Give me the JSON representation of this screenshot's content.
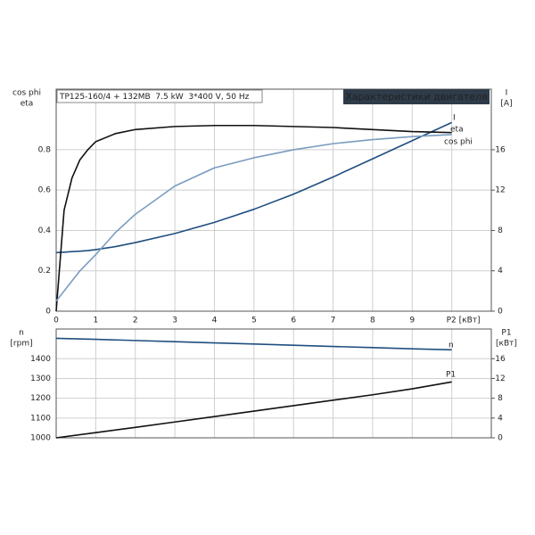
{
  "chart_data": [
    {
      "type": "line",
      "title": "Характеристики двигателя",
      "subtitle": "TP125-160/4 + 132MB  7.5 kW  3*400 V, 50 Hz",
      "ylabel": [
        "cos phi",
        "eta"
      ],
      "y2label": [
        "I",
        "[A]"
      ],
      "x": [
        0,
        0.2,
        0.4,
        0.6,
        0.8,
        1,
        1.5,
        2,
        3,
        4,
        5,
        6,
        7,
        8,
        9,
        10
      ],
      "series": [
        {
          "name": "I",
          "color": "#1f4e80",
          "axis": "y2",
          "values": [
            5.8,
            5.85,
            5.9,
            5.95,
            6.0,
            6.1,
            6.4,
            6.8,
            7.7,
            8.8,
            10.1,
            11.6,
            13.3,
            15.1,
            16.9,
            18.7
          ]
        },
        {
          "name": "eta",
          "color": "#111111",
          "values": [
            0,
            0.5,
            0.66,
            0.75,
            0.8,
            0.84,
            0.88,
            0.9,
            0.915,
            0.92,
            0.92,
            0.915,
            0.91,
            0.9,
            0.89,
            0.885
          ]
        },
        {
          "name": "cos phi",
          "color": "#7a9cc0",
          "values": [
            0.05,
            0.1,
            0.15,
            0.2,
            0.24,
            0.28,
            0.39,
            0.48,
            0.62,
            0.71,
            0.76,
            0.8,
            0.83,
            0.85,
            0.865,
            0.875
          ]
        }
      ],
      "xlim": [
        0,
        11
      ],
      "xticks": [
        0,
        1,
        2,
        3,
        4,
        5,
        6,
        7,
        8,
        9,
        {
          "value": 10,
          "label": "P2 [кВт]"
        }
      ],
      "ylim": [
        0,
        1.1
      ],
      "yticks": [
        0.0,
        0.2,
        0.4,
        0.6,
        0.8
      ],
      "y2lim": [
        0,
        22
      ],
      "y2ticks": [
        0,
        4,
        8,
        12,
        16
      ],
      "grid": true
    },
    {
      "type": "line",
      "ylabel": [
        "n",
        "[rpm]"
      ],
      "y2label": [
        "P1",
        "[кВт]"
      ],
      "x": [
        0,
        1,
        2,
        3,
        4,
        5,
        6,
        7,
        8,
        9,
        10
      ],
      "series": [
        {
          "name": "n",
          "color": "#1f4e80",
          "values": [
            1503,
            1498,
            1492,
            1486,
            1480,
            1474,
            1468,
            1462,
            1456,
            1450,
            1445
          ]
        },
        {
          "name": "P1",
          "color": "#111111",
          "axis": "y2",
          "values": [
            0,
            1.05,
            2.1,
            3.2,
            4.3,
            5.4,
            6.5,
            7.6,
            8.7,
            9.9,
            11.3
          ]
        }
      ],
      "xlim": [
        0,
        11
      ],
      "xticks": [
        0,
        1,
        2,
        3,
        4,
        5,
        6,
        7,
        8,
        9,
        10
      ],
      "ylim": [
        1000,
        1550
      ],
      "yticks": [
        1000,
        1100,
        1200,
        1300,
        1400
      ],
      "y2lim": [
        0,
        22
      ],
      "y2ticks": [
        0,
        4,
        8,
        12,
        16
      ],
      "grid": true
    }
  ]
}
